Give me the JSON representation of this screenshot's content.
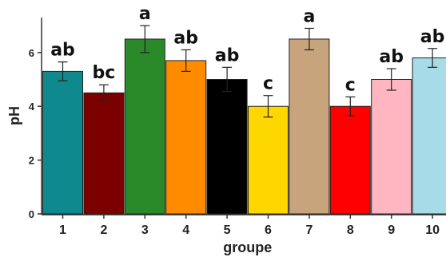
{
  "chart_data": {
    "type": "bar",
    "title": "",
    "xlabel": "groupe",
    "ylabel": "pH",
    "ylim": [
      0,
      7.3
    ],
    "yticks": [
      0,
      2,
      4,
      6
    ],
    "grid": false,
    "categories": [
      "1",
      "2",
      "3",
      "4",
      "5",
      "6",
      "7",
      "8",
      "9",
      "10"
    ],
    "values": [
      5.3,
      4.5,
      6.5,
      5.7,
      5.0,
      4.0,
      6.5,
      4.0,
      5.0,
      5.8
    ],
    "errors": [
      0.35,
      0.3,
      0.5,
      0.4,
      0.45,
      0.4,
      0.4,
      0.35,
      0.4,
      0.35
    ],
    "labels": [
      "ab",
      "bc",
      "a",
      "ab",
      "ab",
      "c",
      "a",
      "c",
      "ab",
      "ab"
    ],
    "colors": [
      "#0e8a8e",
      "#7d0000",
      "#2a8a2a",
      "#ff8c00",
      "#000000",
      "#ffd700",
      "#c8a47c",
      "#ff0000",
      "#ffb6c1",
      "#a7dbe8"
    ]
  }
}
